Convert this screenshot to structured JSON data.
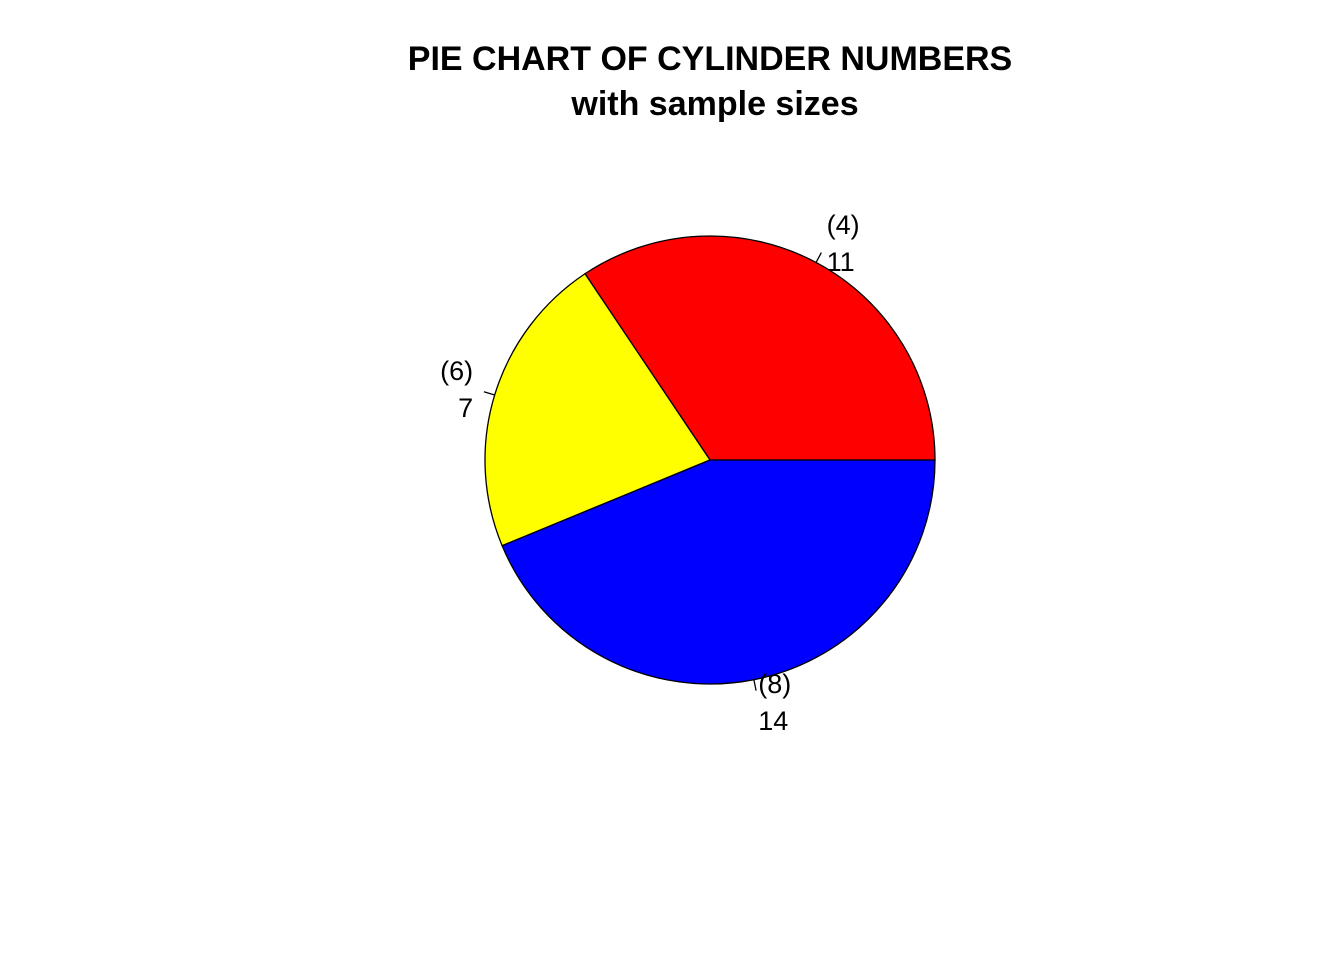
{
  "chart_data": {
    "type": "pie",
    "title": "PIE CHART OF CYLINDER NUMBERS",
    "subtitle": "with sample sizes",
    "clockwise": false,
    "start": "3 o'clock",
    "slices": [
      {
        "category": "(4)",
        "value": 11,
        "color": "#FF0000"
      },
      {
        "category": "(6)",
        "value": 7,
        "color": "#FFFF00"
      },
      {
        "category": "(8)",
        "value": 14,
        "color": "#0000FF"
      }
    ]
  }
}
